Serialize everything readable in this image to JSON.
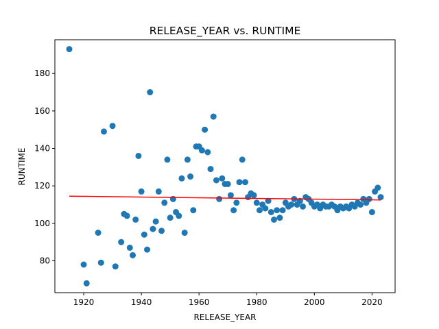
{
  "chart_data": {
    "type": "scatter",
    "title": "RELEASE_YEAR vs. RUNTIME",
    "xlabel": "RELEASE_YEAR",
    "ylabel": "RUNTIME",
    "xlim": [
      1910,
      2028
    ],
    "ylim": [
      63,
      198
    ],
    "xticks": [
      1920,
      1940,
      1960,
      1980,
      2000,
      2020
    ],
    "yticks": [
      80,
      100,
      120,
      140,
      160,
      180
    ],
    "grid": false,
    "colors": {
      "points": "#1f77b4",
      "trend": "#ff0000"
    },
    "points": [
      [
        1915,
        193
      ],
      [
        1920,
        78
      ],
      [
        1921,
        68
      ],
      [
        1925,
        95
      ],
      [
        1926,
        79
      ],
      [
        1927,
        149
      ],
      [
        1930,
        152
      ],
      [
        1931,
        77
      ],
      [
        1933,
        90
      ],
      [
        1934,
        105
      ],
      [
        1935,
        104
      ],
      [
        1936,
        87
      ],
      [
        1937,
        83
      ],
      [
        1938,
        102
      ],
      [
        1939,
        136
      ],
      [
        1940,
        117
      ],
      [
        1941,
        94
      ],
      [
        1942,
        86
      ],
      [
        1943,
        170
      ],
      [
        1944,
        97
      ],
      [
        1945,
        101
      ],
      [
        1946,
        117
      ],
      [
        1947,
        96
      ],
      [
        1948,
        111
      ],
      [
        1949,
        134
      ],
      [
        1950,
        103
      ],
      [
        1951,
        113
      ],
      [
        1952,
        106
      ],
      [
        1953,
        104
      ],
      [
        1954,
        124
      ],
      [
        1955,
        95
      ],
      [
        1956,
        134
      ],
      [
        1957,
        125
      ],
      [
        1958,
        107
      ],
      [
        1959,
        141
      ],
      [
        1960,
        141
      ],
      [
        1961,
        139
      ],
      [
        1962,
        150
      ],
      [
        1963,
        138
      ],
      [
        1964,
        129
      ],
      [
        1965,
        157
      ],
      [
        1966,
        123
      ],
      [
        1967,
        113
      ],
      [
        1968,
        124
      ],
      [
        1969,
        121
      ],
      [
        1970,
        121
      ],
      [
        1971,
        115
      ],
      [
        1972,
        107
      ],
      [
        1973,
        111
      ],
      [
        1974,
        122
      ],
      [
        1975,
        134
      ],
      [
        1976,
        122
      ],
      [
        1977,
        114
      ],
      [
        1978,
        116
      ],
      [
        1979,
        115
      ],
      [
        1980,
        111
      ],
      [
        1981,
        107
      ],
      [
        1982,
        110
      ],
      [
        1983,
        108
      ],
      [
        1984,
        112
      ],
      [
        1985,
        106
      ],
      [
        1986,
        102
      ],
      [
        1987,
        107
      ],
      [
        1988,
        103
      ],
      [
        1989,
        107
      ],
      [
        1990,
        111
      ],
      [
        1991,
        109
      ],
      [
        1992,
        110
      ],
      [
        1993,
        113
      ],
      [
        1994,
        110
      ],
      [
        1995,
        112
      ],
      [
        1996,
        109
      ],
      [
        1997,
        114
      ],
      [
        1998,
        113
      ],
      [
        1999,
        111
      ],
      [
        2000,
        109
      ],
      [
        2001,
        110
      ],
      [
        2002,
        108
      ],
      [
        2003,
        110
      ],
      [
        2004,
        109
      ],
      [
        2005,
        109
      ],
      [
        2006,
        110
      ],
      [
        2007,
        109
      ],
      [
        2008,
        107
      ],
      [
        2009,
        109
      ],
      [
        2010,
        108
      ],
      [
        2011,
        109
      ],
      [
        2012,
        108
      ],
      [
        2013,
        110
      ],
      [
        2014,
        109
      ],
      [
        2015,
        111
      ],
      [
        2016,
        110
      ],
      [
        2017,
        113
      ],
      [
        2018,
        111
      ],
      [
        2019,
        113
      ],
      [
        2020,
        106
      ],
      [
        2021,
        117
      ],
      [
        2022,
        119
      ],
      [
        2023,
        114
      ]
    ],
    "trendline": {
      "x": [
        1915,
        2023
      ],
      "y": [
        114.5,
        112.5
      ]
    }
  }
}
